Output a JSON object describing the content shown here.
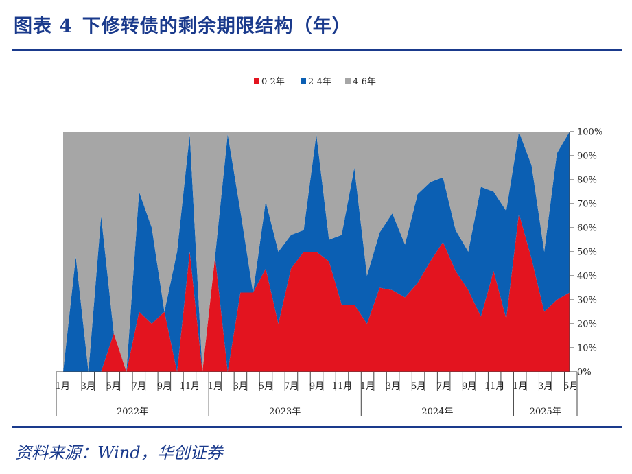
{
  "figure": {
    "label": "图表",
    "number": "4",
    "title": "下修转债的剩余期限结构（年）"
  },
  "source": "资料来源：Wind，华创证券",
  "colors": {
    "series_0_2": "#e3141f",
    "series_2_4": "#0b5fb3",
    "series_4_6": "#a6a6a6",
    "rule": "#1a3a8c"
  },
  "chart_data": {
    "type": "area",
    "stacked": true,
    "title": "",
    "xlabel": "",
    "ylabel": "",
    "ylim": [
      0,
      100
    ],
    "y_unit": "%",
    "y_ticks": [
      "0%",
      "10%",
      "20%",
      "30%",
      "40%",
      "50%",
      "60%",
      "70%",
      "80%",
      "90%",
      "100%"
    ],
    "legend_position": "top-center",
    "x": [
      "2022-01",
      "2022-02",
      "2022-03",
      "2022-04",
      "2022-05",
      "2022-06",
      "2022-07",
      "2022-08",
      "2022-09",
      "2022-10",
      "2022-11",
      "2022-12",
      "2023-01",
      "2023-02",
      "2023-03",
      "2023-04",
      "2023-05",
      "2023-06",
      "2023-07",
      "2023-08",
      "2023-09",
      "2023-10",
      "2023-11",
      "2023-12",
      "2024-01",
      "2024-02",
      "2024-03",
      "2024-04",
      "2024-05",
      "2024-06",
      "2024-07",
      "2024-08",
      "2024-09",
      "2024-10",
      "2024-11",
      "2024-12",
      "2025-01",
      "2025-02",
      "2025-03",
      "2025-04",
      "2025-05"
    ],
    "x_tick_labels": [
      "1月",
      "",
      "3月",
      "",
      "5月",
      "",
      "7月",
      "",
      "9月",
      "",
      "11月",
      "",
      "1月",
      "",
      "3月",
      "",
      "5月",
      "",
      "7月",
      "",
      "9月",
      "",
      "11月",
      "",
      "1月",
      "",
      "3月",
      "",
      "5月",
      "",
      "7月",
      "",
      "9月",
      "",
      "11月",
      "",
      "1月",
      "",
      "3月",
      "",
      "5月"
    ],
    "year_groups": [
      {
        "label": "2022年",
        "months": 12
      },
      {
        "label": "2023年",
        "months": 12
      },
      {
        "label": "2024年",
        "months": 12
      },
      {
        "label": "2025年",
        "months": 5
      }
    ],
    "series": [
      {
        "name": "0-2年",
        "values": [
          0,
          0,
          0,
          0,
          16,
          0,
          25,
          20,
          25,
          0,
          50,
          0,
          48,
          0,
          33,
          33,
          43,
          20,
          43,
          50,
          50,
          46,
          28,
          28,
          20,
          35,
          34,
          31,
          37,
          46,
          54,
          42,
          34,
          23,
          42,
          22,
          66,
          47,
          25,
          30,
          33
        ]
      },
      {
        "name": "2-4年",
        "values": [
          0,
          48,
          0,
          65,
          0,
          0,
          50,
          40,
          0,
          50,
          49,
          0,
          0,
          99,
          34,
          0,
          28,
          30,
          14,
          9,
          49,
          9,
          29,
          57,
          20,
          23,
          32,
          22,
          37,
          33,
          27,
          17,
          16,
          54,
          33,
          45,
          34,
          39,
          25,
          61,
          67
        ]
      },
      {
        "name": "4-6年",
        "values": [
          100,
          52,
          100,
          35,
          84,
          100,
          25,
          40,
          75,
          50,
          1,
          100,
          52,
          1,
          33,
          67,
          29,
          50,
          43,
          41,
          1,
          45,
          43,
          15,
          60,
          42,
          34,
          47,
          26,
          21,
          19,
          41,
          50,
          23,
          25,
          33,
          0,
          14,
          50,
          9,
          0
        ]
      }
    ]
  }
}
